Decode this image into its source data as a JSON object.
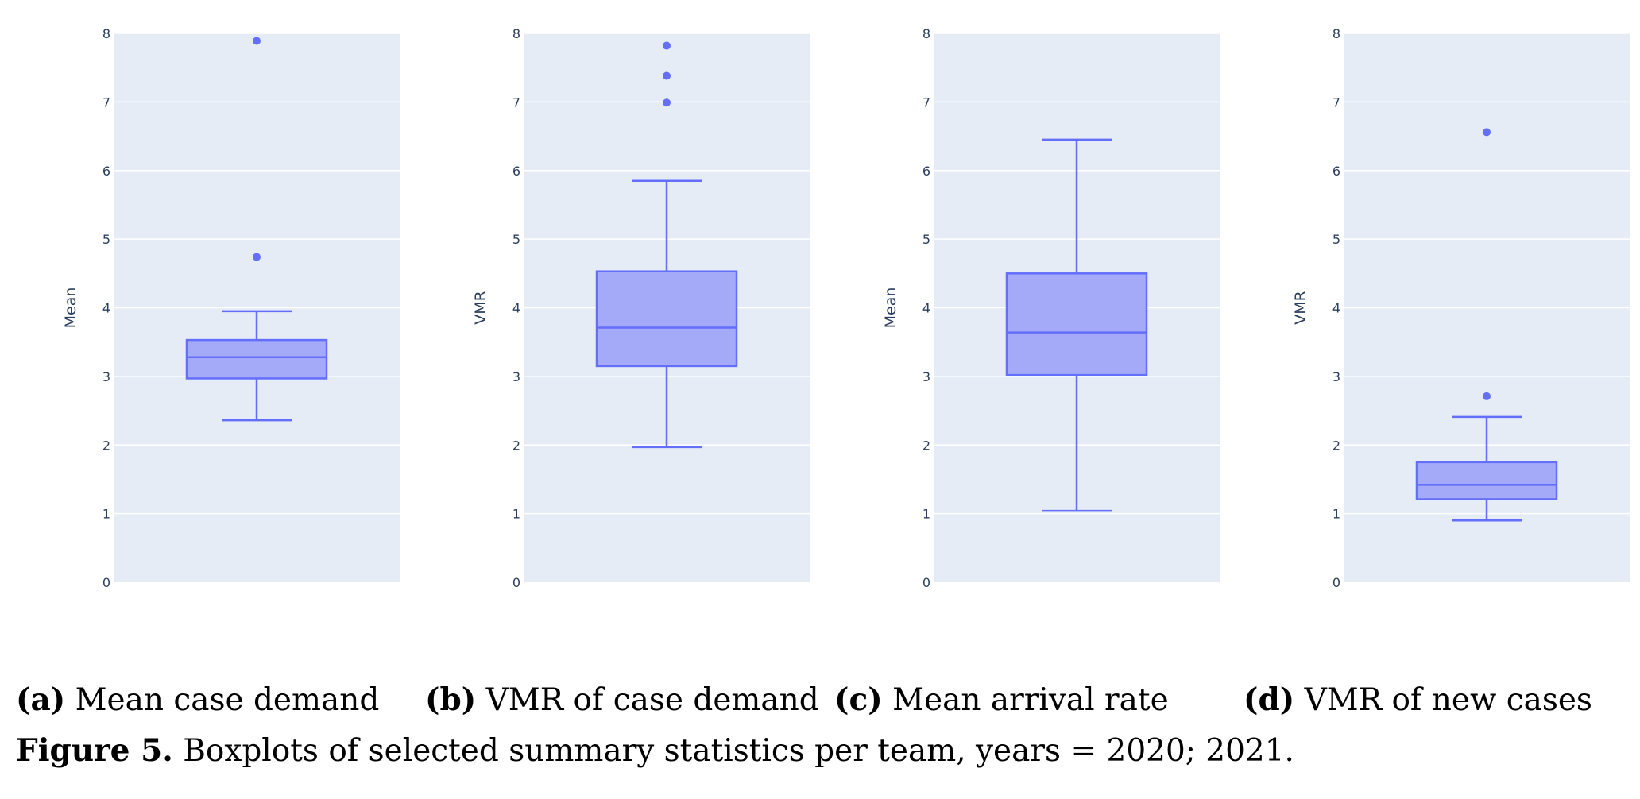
{
  "chart_data": [
    {
      "type": "box",
      "panel_label": "(a)",
      "subcaption": "Mean case demand",
      "ylabel": "Mean",
      "ylim": [
        0,
        8
      ],
      "yticks": [
        "0",
        "1",
        "2",
        "3",
        "4",
        "5",
        "6",
        "7",
        "8"
      ],
      "box": {
        "lower_fence": 2.36,
        "q1": 2.97,
        "median": 3.28,
        "q3": 3.53,
        "upper_fence": 3.95
      },
      "outliers": [
        4.74,
        7.89
      ]
    },
    {
      "type": "box",
      "panel_label": "(b)",
      "subcaption": "VMR of case demand",
      "ylabel": "VMR",
      "ylim": [
        0,
        8
      ],
      "yticks": [
        "0",
        "1",
        "2",
        "3",
        "4",
        "5",
        "6",
        "7",
        "8"
      ],
      "box": {
        "lower_fence": 1.97,
        "q1": 3.15,
        "median": 3.71,
        "q3": 4.53,
        "upper_fence": 5.85
      },
      "outliers": [
        6.99,
        7.38,
        7.82
      ]
    },
    {
      "type": "box",
      "panel_label": "(c)",
      "subcaption": "Mean arrival rate",
      "ylabel": "Mean",
      "ylim": [
        0,
        8
      ],
      "yticks": [
        "0",
        "1",
        "2",
        "3",
        "4",
        "5",
        "6",
        "7",
        "8"
      ],
      "box": {
        "lower_fence": 1.04,
        "q1": 3.02,
        "median": 3.64,
        "q3": 4.5,
        "upper_fence": 6.45
      },
      "outliers": []
    },
    {
      "type": "box",
      "panel_label": "(d)",
      "subcaption": "VMR of new cases",
      "ylabel": "VMR",
      "ylim": [
        0,
        8
      ],
      "yticks": [
        "0",
        "1",
        "2",
        "3",
        "4",
        "5",
        "6",
        "7",
        "8"
      ],
      "box": {
        "lower_fence": 0.9,
        "q1": 1.21,
        "median": 1.42,
        "q3": 1.75,
        "upper_fence": 2.41
      },
      "outliers": [
        2.71,
        6.56
      ]
    }
  ],
  "caption": {
    "label": "Figure 5.",
    "text": "Boxplots of selected summary statistics per team, years = 2020; 2021."
  },
  "colors": {
    "plot_bg": "#e5ecf6",
    "grid": "#ffffff",
    "box_line": "#636efa",
    "box_fill": "#a4aaf8",
    "text": "#2a3f5f"
  }
}
